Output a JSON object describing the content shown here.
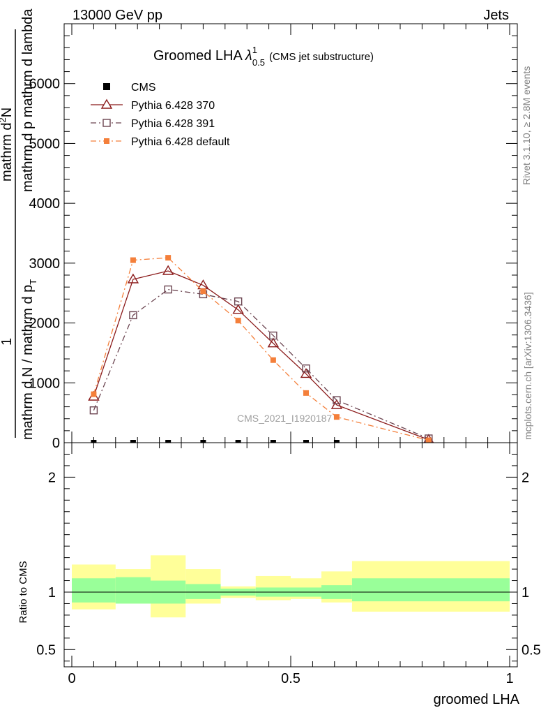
{
  "header": {
    "left": "13000 GeV pp",
    "right": "Jets"
  },
  "side_labels": {
    "rivet": "Rivet 3.1.10, ≥ 2.8M events",
    "mcplots": "mcplots.cern.ch [arXiv:1306.3436]"
  },
  "chart_data": [
    {
      "panel": "main",
      "type": "line",
      "title": "Groomed LHA",
      "title_symbol": "λ",
      "title_sup": "1",
      "title_sub": "0.5",
      "title_suffix": "(CMS jet substructure)",
      "ylabel_parts": [
        "1",
        "mathrm d N / mathrm d p_T",
        "mathrm d^2N",
        "mathrm d p_T mathrm d lambda"
      ],
      "ylabel_lines": {
        "outer_den": "mathrm d N / mathrm d p",
        "outer_num": "1",
        "inner_num": "mathrm d",
        "inner_sup": "2",
        "inner_num2": "N",
        "inner_den": "mathrm d p  mathrm d lambda",
        "sub_T": "T"
      },
      "xlim": [
        0,
        1
      ],
      "ylim": [
        0,
        7000
      ],
      "yticks": [
        {
          "value": 0,
          "label": "0"
        },
        {
          "value": 1000,
          "label": "1000"
        },
        {
          "value": 2000,
          "label": "2000"
        },
        {
          "value": 3000,
          "label": "3000"
        },
        {
          "value": 4000,
          "label": "4000"
        },
        {
          "value": 5000,
          "label": "5000"
        },
        {
          "value": 6000,
          "label": "6000"
        }
      ],
      "watermark": "CMS_2021_I1920187",
      "series": [
        {
          "name": "CMS",
          "style": "data",
          "color": "#000000",
          "x": [
            0.05,
            0.14,
            0.22,
            0.3,
            0.38,
            0.46,
            0.535,
            0.605,
            0.815
          ],
          "y": [
            0,
            0,
            0,
            0,
            0,
            0,
            0,
            0,
            0
          ]
        },
        {
          "name": "Pythia 6.428 370",
          "style": "solid-triangle",
          "color": "#8b1a1a",
          "x": [
            0.05,
            0.14,
            0.22,
            0.3,
            0.38,
            0.46,
            0.535,
            0.605,
            0.815
          ],
          "y": [
            770,
            2730,
            2870,
            2630,
            2220,
            1660,
            1150,
            630,
            50
          ]
        },
        {
          "name": "Pythia 6.428 391",
          "style": "dashdot-square",
          "color": "#6b4450",
          "x": [
            0.05,
            0.14,
            0.22,
            0.3,
            0.38,
            0.46,
            0.535,
            0.605,
            0.815
          ],
          "y": [
            540,
            2130,
            2560,
            2480,
            2360,
            1790,
            1240,
            710,
            70
          ]
        },
        {
          "name": "Pythia 6.428 default",
          "style": "dashdot-filled",
          "color": "#f47f3a",
          "x": [
            0.05,
            0.14,
            0.22,
            0.3,
            0.38,
            0.46,
            0.535,
            0.605,
            0.815
          ],
          "y": [
            810,
            3050,
            3090,
            2530,
            2040,
            1380,
            830,
            430,
            40
          ]
        }
      ]
    },
    {
      "panel": "ratio",
      "type": "area",
      "ylabel": "Ratio to CMS",
      "xlabel": "groomed LHA",
      "xlim": [
        0,
        1
      ],
      "ylim": [
        0.35,
        2.3
      ],
      "yticks": [
        {
          "value": 0.5,
          "label": "0.5"
        },
        {
          "value": 1,
          "label": "1"
        },
        {
          "value": 2,
          "label": "2"
        }
      ],
      "xticks": [
        {
          "value": 0,
          "label": "0"
        },
        {
          "value": 0.5,
          "label": "0.5"
        },
        {
          "value": 1,
          "label": "1"
        }
      ],
      "band_colors": {
        "outer": "#ffff99",
        "inner": "#99ff99"
      },
      "bins": [
        {
          "lo": 0.0,
          "hi": 0.1,
          "inner": [
            0.91,
            1.12
          ],
          "outer": [
            0.85,
            1.24
          ]
        },
        {
          "lo": 0.1,
          "hi": 0.18,
          "inner": [
            0.9,
            1.13
          ],
          "outer": [
            0.9,
            1.2
          ]
        },
        {
          "lo": 0.18,
          "hi": 0.26,
          "inner": [
            0.9,
            1.1
          ],
          "outer": [
            0.78,
            1.32
          ]
        },
        {
          "lo": 0.26,
          "hi": 0.34,
          "inner": [
            0.94,
            1.07
          ],
          "outer": [
            0.9,
            1.2
          ]
        },
        {
          "lo": 0.34,
          "hi": 0.42,
          "inner": [
            0.97,
            1.03
          ],
          "outer": [
            0.95,
            1.05
          ]
        },
        {
          "lo": 0.42,
          "hi": 0.5,
          "inner": [
            0.96,
            1.04
          ],
          "outer": [
            0.93,
            1.14
          ]
        },
        {
          "lo": 0.5,
          "hi": 0.57,
          "inner": [
            0.96,
            1.04
          ],
          "outer": [
            0.94,
            1.12
          ]
        },
        {
          "lo": 0.57,
          "hi": 0.64,
          "inner": [
            0.94,
            1.06
          ],
          "outer": [
            0.91,
            1.18
          ]
        },
        {
          "lo": 0.64,
          "hi": 1.0,
          "inner": [
            0.92,
            1.12
          ],
          "outer": [
            0.83,
            1.27
          ]
        }
      ]
    }
  ]
}
